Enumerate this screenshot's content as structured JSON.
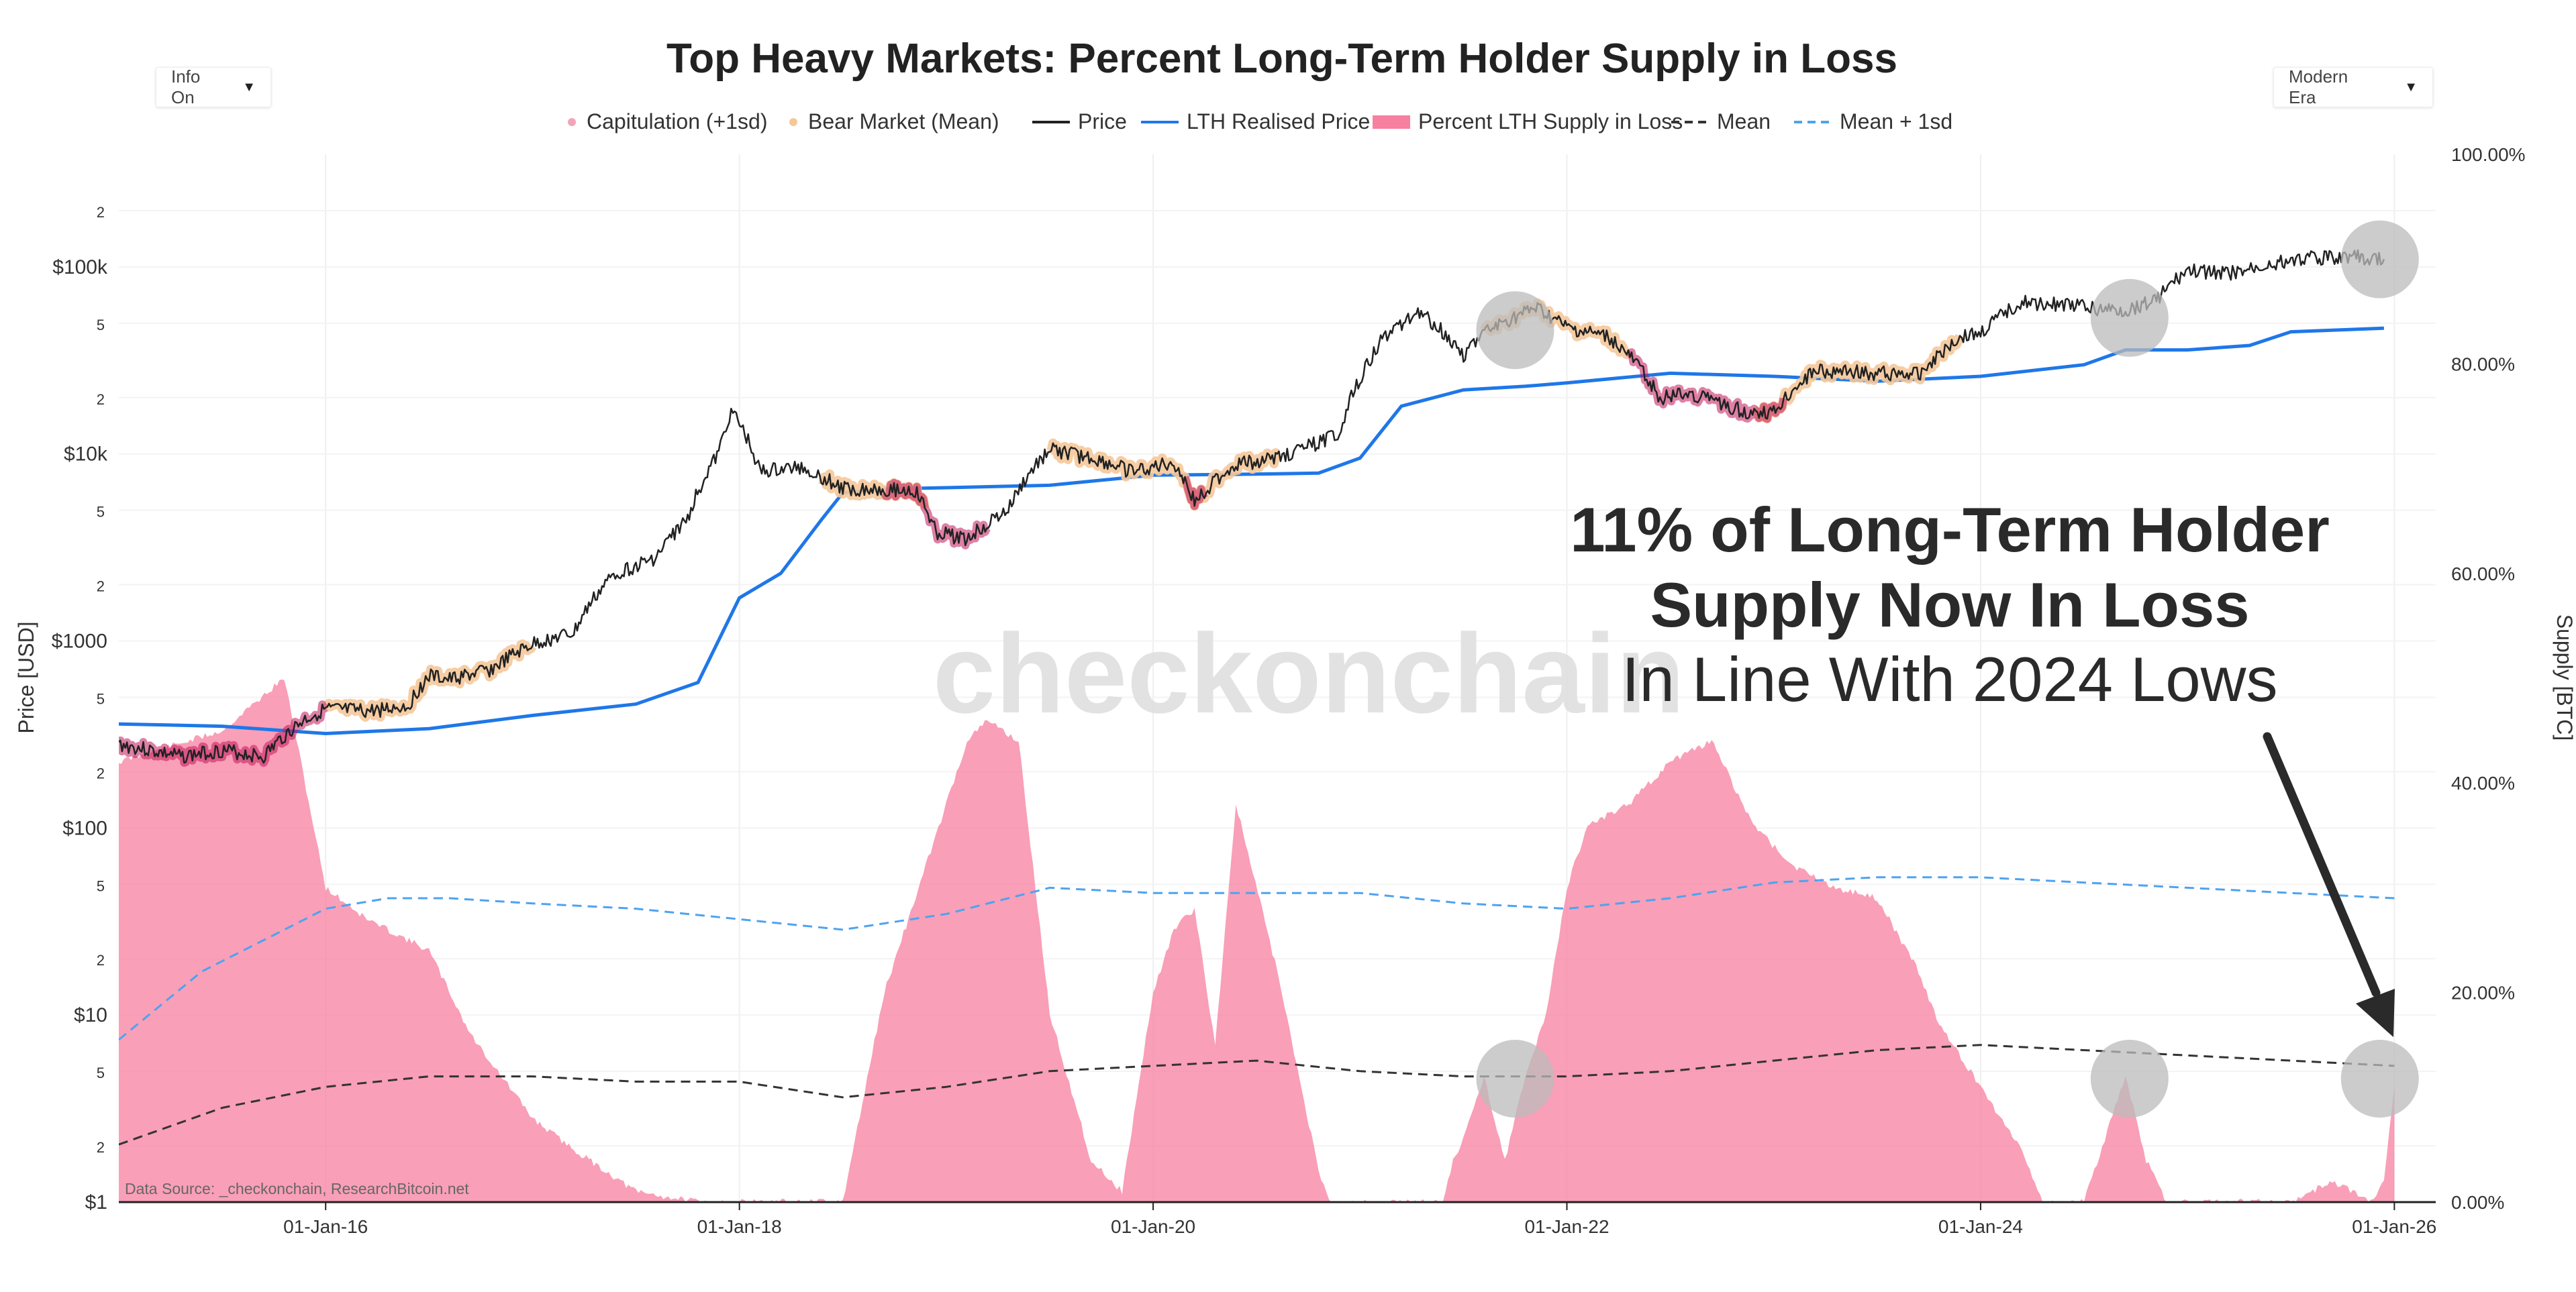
{
  "controls": {
    "info_toggle": "Info On",
    "era_select": "Modern Era",
    "caret": "▼"
  },
  "colors": {
    "price": "#222222",
    "lth_realised": "#1f77e8",
    "supply_fill": "#f77fa0",
    "mean": "#333333",
    "mean_1sd": "#4da3f0",
    "capitulation": "#f2a5b8",
    "bear_market": "#f5c89a",
    "highlight": "#bbbbbb",
    "watermark": "#dedede"
  },
  "chart_data": {
    "type": "line",
    "title": "Top Heavy Markets: Percent Long-Term Holder Supply in Loss",
    "legend": [
      "Capitulation (+1sd)",
      "Bear Market (Mean)",
      "Price",
      "LTH Realised Price",
      "Percent LTH Supply in Loss",
      "Mean",
      "Mean + 1sd"
    ],
    "legend_placement": "top-center",
    "y_left_label": "Price [USD]",
    "y_right_label": "Supply [BTC]",
    "y_left_scale": "log",
    "y_left_range": [
      1,
      400000
    ],
    "y_right_range": [
      0,
      100
    ],
    "y_left_ticks": [
      "$1",
      "2",
      "5",
      "$10",
      "2",
      "5",
      "$100",
      "2",
      "5",
      "$1000",
      "2",
      "5",
      "$10k",
      "2",
      "5",
      "$100k",
      "2"
    ],
    "y_left_tick_values": [
      1,
      2,
      5,
      10,
      20,
      50,
      100,
      200,
      500,
      1000,
      2000,
      5000,
      10000,
      20000,
      50000,
      100000,
      200000
    ],
    "y_right_ticks": [
      "0.00%",
      "20.00%",
      "40.00%",
      "60.00%",
      "80.00%",
      "100.00%"
    ],
    "y_right_tick_values": [
      0,
      20,
      40,
      60,
      80,
      100
    ],
    "x_range": [
      2015.0,
      2026.2
    ],
    "x_ticks": [
      "01-Jan-16",
      "01-Jan-18",
      "01-Jan-20",
      "01-Jan-22",
      "01-Jan-24",
      "01-Jan-26"
    ],
    "x_tick_values": [
      2016,
      2018,
      2020,
      2022,
      2024,
      2026
    ],
    "watermark": "checkonchain",
    "data_source": "Data Source: _checkonchain, ResearchBitcoin.net",
    "annotation": {
      "headline_1": "11% of Long-Term Holder",
      "headline_2": "Supply Now In Loss",
      "subline": "In Line With 2024 Lows"
    },
    "series": [
      {
        "name": "Price",
        "axis": "left",
        "x": [
          2015.0,
          2015.15,
          2015.3,
          2015.5,
          2015.7,
          2015.9,
          2016.0,
          2016.2,
          2016.4,
          2016.5,
          2016.6,
          2016.8,
          2017.0,
          2017.2,
          2017.4,
          2017.5,
          2017.6,
          2017.75,
          2017.9,
          2017.96,
          2018.1,
          2018.3,
          2018.5,
          2018.7,
          2018.85,
          2018.95,
          2019.1,
          2019.3,
          2019.5,
          2019.7,
          2019.9,
          2020.1,
          2020.2,
          2020.4,
          2020.6,
          2020.8,
          2020.9,
          2021.0,
          2021.1,
          2021.28,
          2021.5,
          2021.6,
          2021.85,
          2022.0,
          2022.2,
          2022.45,
          2022.6,
          2022.85,
          2023.0,
          2023.2,
          2023.5,
          2023.7,
          2023.9,
          2024.0,
          2024.2,
          2024.5,
          2024.7,
          2024.85,
          2025.0,
          2025.25,
          2025.5,
          2025.8,
          2025.95
        ],
        "values": [
          280,
          260,
          240,
          260,
          240,
          380,
          430,
          420,
          450,
          650,
          620,
          700,
          960,
          1100,
          2300,
          2500,
          2800,
          4500,
          10000,
          17000,
          8000,
          8500,
          6500,
          6500,
          6300,
          3800,
          3500,
          5000,
          10500,
          9500,
          8000,
          9000,
          5500,
          8800,
          9500,
          11500,
          13000,
          25000,
          40000,
          58000,
          34000,
          44000,
          60000,
          47000,
          42000,
          20000,
          21000,
          17000,
          16500,
          28000,
          27000,
          26500,
          42000,
          44000,
          65000,
          61000,
          58000,
          67000,
          95000,
          93000,
          110000,
          114000,
          110000
        ]
      },
      {
        "name": "LTH Realised Price",
        "axis": "left",
        "x": [
          2015.0,
          2015.5,
          2016.0,
          2016.5,
          2017.0,
          2017.5,
          2017.8,
          2018.0,
          2018.2,
          2018.4,
          2018.5,
          2018.7,
          2019.0,
          2019.5,
          2020.0,
          2020.5,
          2020.8,
          2021.0,
          2021.2,
          2021.5,
          2021.8,
          2022.0,
          2022.5,
          2023.0,
          2023.5,
          2024.0,
          2024.5,
          2024.7,
          2025.0,
          2025.3,
          2025.5,
          2025.95
        ],
        "values": [
          360,
          350,
          320,
          340,
          400,
          460,
          600,
          1700,
          2300,
          4500,
          6200,
          6500,
          6600,
          6800,
          7700,
          7800,
          7900,
          9500,
          18000,
          22000,
          23000,
          24000,
          27000,
          26000,
          24500,
          26000,
          30000,
          36000,
          36000,
          38000,
          45000,
          47000
        ]
      },
      {
        "name": "Percent LTH Supply in Loss",
        "axis": "right",
        "x": [
          2015.0,
          2015.5,
          2015.8,
          2016.0,
          2016.2,
          2016.5,
          2016.7,
          2017.0,
          2017.2,
          2017.5,
          2017.8,
          2018.0,
          2018.3,
          2018.5,
          2018.7,
          2018.9,
          2019.0,
          2019.1,
          2019.2,
          2019.35,
          2019.5,
          2019.7,
          2019.85,
          2020.0,
          2020.1,
          2020.2,
          2020.3,
          2020.4,
          2020.6,
          2020.8,
          2020.85,
          2021.0,
          2021.4,
          2021.45,
          2021.5,
          2021.6,
          2021.7,
          2021.75,
          2021.8,
          2021.9,
          2022.0,
          2022.1,
          2022.3,
          2022.5,
          2022.7,
          2022.9,
          2023.1,
          2023.3,
          2023.5,
          2023.7,
          2023.8,
          2024.0,
          2024.2,
          2024.3,
          2024.5,
          2024.6,
          2024.7,
          2024.8,
          2024.9,
          2025.0,
          2025.5,
          2025.7,
          2025.8,
          2025.9,
          2025.95,
          2026.0
        ],
        "values": [
          42,
          45,
          50,
          30,
          27,
          24,
          16,
          8,
          5,
          1,
          0,
          0,
          0,
          0,
          20,
          32,
          38,
          44,
          46,
          44,
          18,
          4,
          1,
          20,
          26,
          28,
          15,
          38,
          22,
          3,
          0,
          0,
          0,
          4,
          6,
          12,
          4,
          8,
          12,
          18,
          30,
          36,
          38,
          42,
          44,
          36,
          32,
          30,
          29,
          22,
          17,
          11,
          5,
          0,
          0,
          6,
          12,
          4,
          0,
          0,
          0,
          2,
          1,
          0,
          2,
          11
        ]
      },
      {
        "name": "Mean",
        "axis": "right",
        "x": [
          2015.0,
          2015.5,
          2016.0,
          2016.5,
          2017.0,
          2017.5,
          2018.0,
          2018.5,
          2019.0,
          2019.5,
          2020.0,
          2020.5,
          2021.0,
          2021.5,
          2022.0,
          2022.5,
          2023.0,
          2023.5,
          2024.0,
          2024.5,
          2025.0,
          2025.5,
          2026.0
        ],
        "values": [
          5.5,
          9,
          11,
          12,
          12,
          11.5,
          11.5,
          10,
          11,
          12.5,
          13,
          13.5,
          12.5,
          12,
          12,
          12.5,
          13.5,
          14.5,
          15,
          14.5,
          14,
          13.5,
          13
        ]
      },
      {
        "name": "Mean + 1sd",
        "axis": "right",
        "x": [
          2015.0,
          2015.4,
          2015.8,
          2016.0,
          2016.3,
          2016.6,
          2017.0,
          2017.5,
          2018.0,
          2018.5,
          2019.0,
          2019.5,
          2020.0,
          2020.5,
          2021.0,
          2021.5,
          2022.0,
          2022.5,
          2023.0,
          2023.5,
          2024.0,
          2024.5,
          2025.0,
          2025.5,
          2026.0
        ],
        "values": [
          15.5,
          22,
          26,
          28,
          29,
          29,
          28.5,
          28,
          27,
          26,
          27.5,
          30,
          29.5,
          29.5,
          29.5,
          28.5,
          28,
          29,
          30.5,
          31,
          31,
          30.5,
          30,
          29.5,
          29
        ]
      }
    ],
    "bear_market_periods": [
      [
        2016.0,
        2017.0
      ],
      [
        2018.4,
        2018.9
      ],
      [
        2019.5,
        2020.6
      ],
      [
        2021.6,
        2022.3
      ],
      [
        2022.9,
        2023.9
      ]
    ],
    "capitulation_periods": [
      [
        2015.0,
        2016.0
      ],
      [
        2018.7,
        2019.2
      ],
      [
        2020.15,
        2020.25
      ],
      [
        2022.3,
        2023.05
      ]
    ],
    "highlight_dates": [
      2021.75,
      2024.72,
      2025.93
    ]
  }
}
